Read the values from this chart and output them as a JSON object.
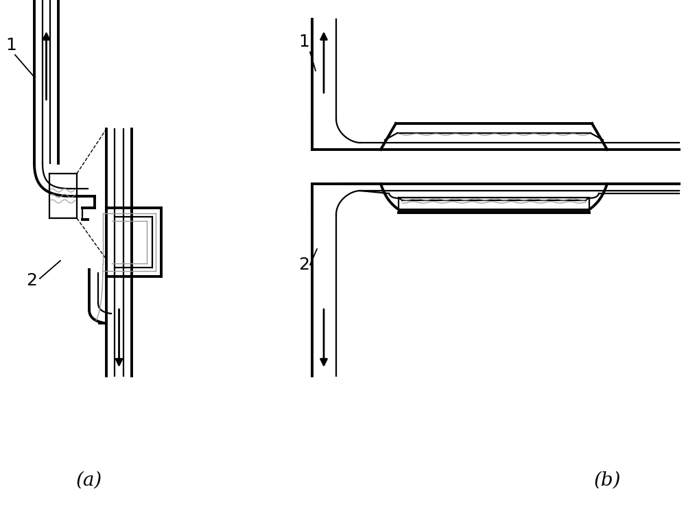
{
  "bg_color": "#ffffff",
  "line_color": "#000000",
  "gray_color": "#999999",
  "lw_thick": 2.8,
  "lw_thin": 1.6,
  "lw_gray": 1.0,
  "label_a": "(a)",
  "label_b": "(b)",
  "label_1a": "1",
  "label_2a": "2",
  "label_1b": "1",
  "label_2b": "2",
  "fontsize_label": 18,
  "fontsize_ab": 20
}
